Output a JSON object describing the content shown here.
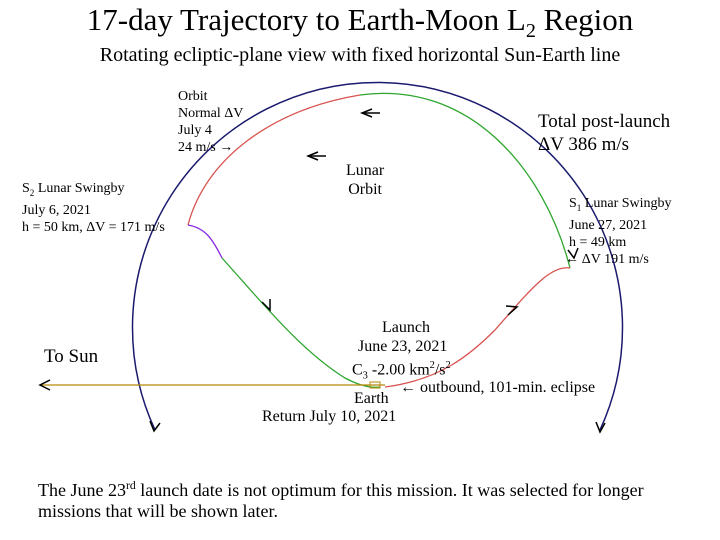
{
  "title": "17-day Trajectory to Earth-Moon L",
  "title_sub": "2",
  "title_end": " Region",
  "subtitle": "Rotating ecliptic-plane view with fixed horizontal Sun-Earth line",
  "orbit_normal": {
    "line1": "Orbit",
    "line2": "Normal ΔV",
    "line3": "July 4",
    "line4": "24 m/s →"
  },
  "total_dv": {
    "line1": "Total post-launch",
    "line2": "ΔV 386 m/s"
  },
  "lunar_orbit": {
    "line1": "Lunar",
    "line2": "Orbit"
  },
  "s2": {
    "prefix": "S",
    "sub": "2",
    "rest": " Lunar Swingby",
    "line2": "July 6, 2021",
    "line3": "h = 50 km, ΔV = 171 m/s"
  },
  "s1": {
    "prefix": "S",
    "sub": "1",
    "rest": " Lunar Swingby",
    "line2": "June 27, 2021",
    "line3": "h = 49 km",
    "line4": "← ΔV 191 m/s"
  },
  "to_sun": "To Sun",
  "launch": {
    "line1": "Launch",
    "line2": "June 23, 2021",
    "c3_prefix": "C",
    "c3_sub": "3",
    "c3_mid": " -2.00 km",
    "c3_sup1": "2",
    "c3_slash": "/s",
    "c3_sup2": "2",
    "outbound": "← outbound, 101-min. eclipse"
  },
  "earth": "Earth",
  "return": "Return July 10, 2021",
  "footnote": {
    "part1": "The June 23",
    "sup": "rd",
    "part2": " launch date is not optimum for this mission.  It was selected for longer missions that will be shown later."
  },
  "colors": {
    "trajectory_red": "#d9534f",
    "trajectory_green": "#2ea52e",
    "trajectory_purple": "#8a2be2",
    "lunar_orbit": "#1a1a6e",
    "sun_line": "#b8860b"
  }
}
